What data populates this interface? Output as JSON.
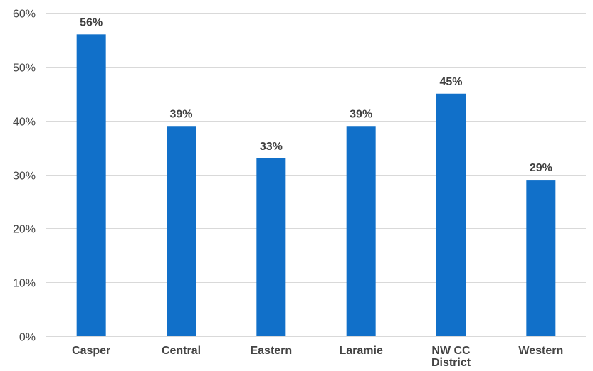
{
  "chart_data": {
    "type": "bar",
    "categories": [
      "Casper",
      "Central",
      "Eastern",
      "Laramie",
      "NW CC District",
      "Western"
    ],
    "category_lines": [
      [
        "Casper"
      ],
      [
        "Central"
      ],
      [
        "Eastern"
      ],
      [
        "Laramie"
      ],
      [
        "NW CC",
        "District"
      ],
      [
        "Western"
      ]
    ],
    "values": [
      56,
      39,
      33,
      39,
      45,
      29
    ],
    "value_labels": [
      "56%",
      "39%",
      "33%",
      "39%",
      "45%",
      "29%"
    ],
    "ylim": [
      0,
      60
    ],
    "yticks": [
      0,
      10,
      20,
      30,
      40,
      50,
      60
    ],
    "ytick_labels": [
      "0%",
      "10%",
      "20%",
      "30%",
      "40%",
      "50%",
      "60%"
    ],
    "title": "",
    "xlabel": "",
    "ylabel": "",
    "grid": true,
    "legend": "none",
    "colors": {
      "bar": "#1170c9",
      "grid": "#d9d9d9",
      "text": "#444444"
    }
  }
}
